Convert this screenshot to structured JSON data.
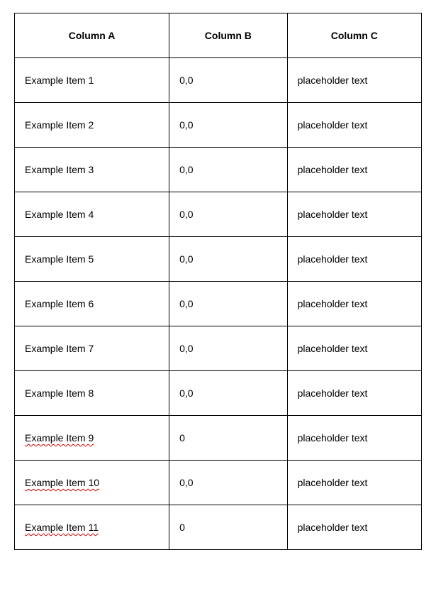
{
  "table": {
    "headers": [
      "Column A",
      "Column B",
      "Column C"
    ],
    "rows": [
      {
        "name": "Example Item 1",
        "score": "0,0",
        "cost": "placeholder text",
        "misspelled": false
      },
      {
        "name": "Example Item 2",
        "score": "0,0",
        "cost": "placeholder text",
        "misspelled": false
      },
      {
        "name": "Example Item 3",
        "score": "0,0",
        "cost": "placeholder text",
        "misspelled": false
      },
      {
        "name": "Example Item 4",
        "score": "0,0",
        "cost": "placeholder text",
        "misspelled": false
      },
      {
        "name": "Example Item 5",
        "score": "0,0",
        "cost": "placeholder text",
        "misspelled": false
      },
      {
        "name": "Example Item 6",
        "score": "0,0",
        "cost": "placeholder text",
        "misspelled": false
      },
      {
        "name": "Example Item 7",
        "score": "0,0",
        "cost": "placeholder text",
        "misspelled": false
      },
      {
        "name": "Example Item 8",
        "score": "0,0",
        "cost": "placeholder text",
        "misspelled": false
      },
      {
        "name": "Example Item 9",
        "score": "0",
        "cost": "placeholder text",
        "misspelled": true
      },
      {
        "name": "Example Item 10",
        "score": "0,0",
        "cost": "placeholder text",
        "misspelled": true
      },
      {
        "name": "Example Item 11",
        "score": "0",
        "cost": "placeholder text",
        "misspelled": true
      }
    ]
  }
}
